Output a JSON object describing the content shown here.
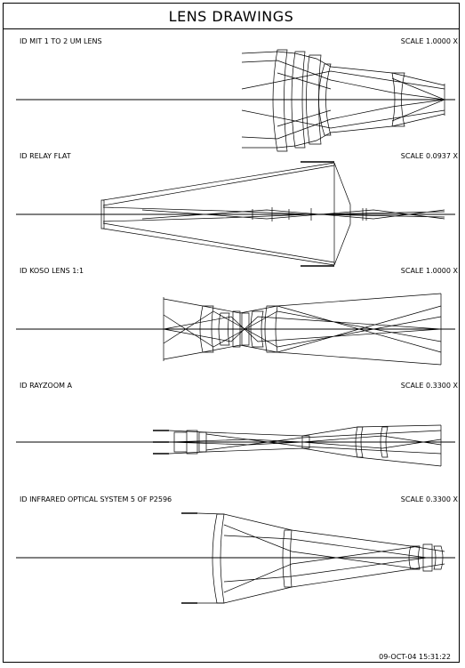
{
  "title": "LENS DRAWINGS",
  "panels": [
    {
      "id_label": "ID MIT 1 TO 2 UM LENS",
      "scale": "SCALE  1.0000 X"
    },
    {
      "id_label": "ID RELAY FLAT",
      "scale": "SCALE  0.0937 X"
    },
    {
      "id_label": "ID KOSO LENS 1:1",
      "scale": "SCALE  1.0000 X"
    },
    {
      "id_label": "ID RAYZOOM A",
      "scale": "SCALE  0.3300 X"
    },
    {
      "id_label": "ID INFRARED OPTICAL SYSTEM 5 OF P2596",
      "scale": "SCALE  0.3300 X"
    }
  ],
  "timestamp": "09-OCT-04  15:31:22",
  "colors": {
    "line": "#000000",
    "background": "#ffffff"
  }
}
